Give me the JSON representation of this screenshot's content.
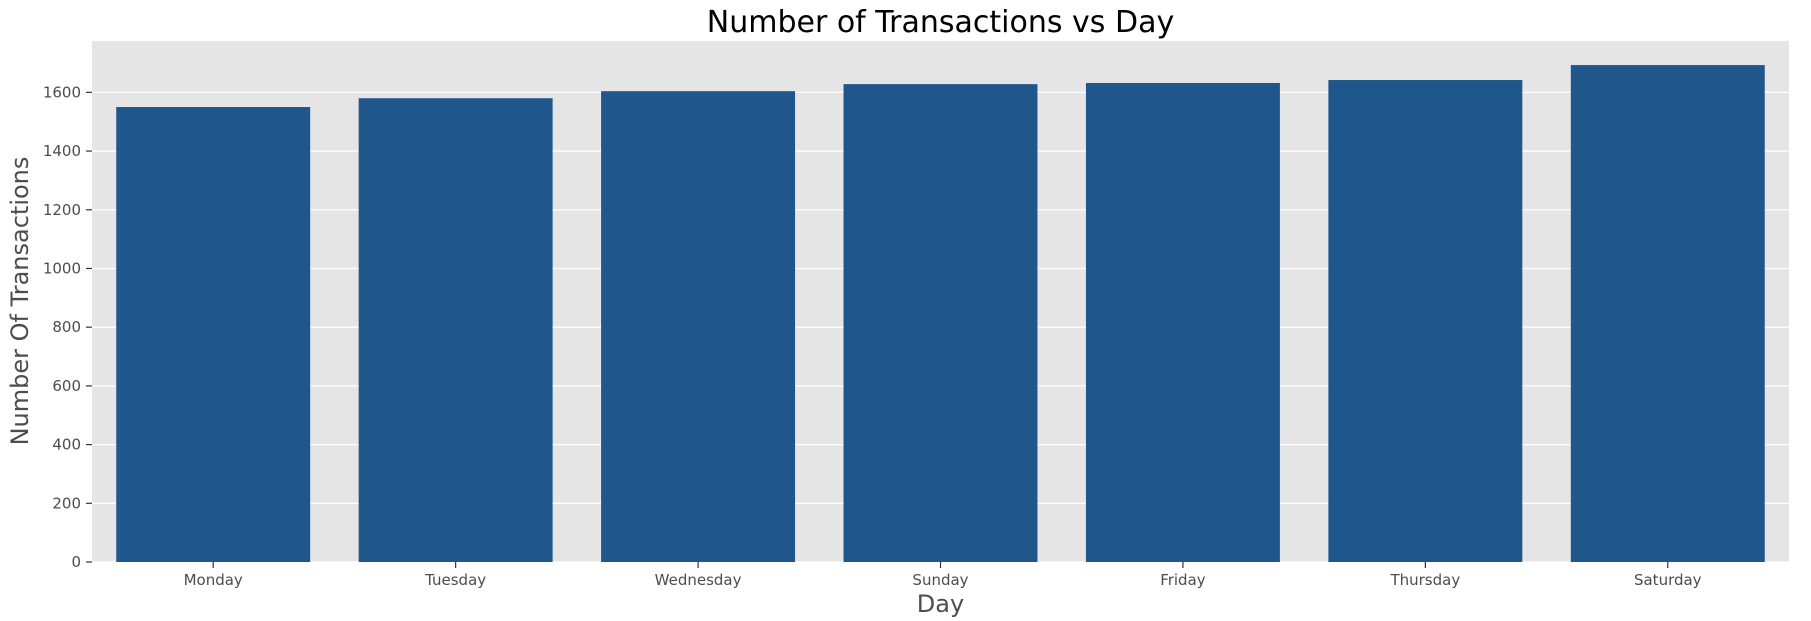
{
  "chart_data": {
    "type": "bar",
    "title": "Number of Transactions vs Day",
    "xlabel": "Day",
    "ylabel": "Number Of Transactions",
    "categories": [
      "Monday",
      "Tuesday",
      "Wednesday",
      "Sunday",
      "Friday",
      "Thursday",
      "Saturday"
    ],
    "values": [
      1550,
      1580,
      1604,
      1628,
      1632,
      1642,
      1693
    ],
    "ylim": [
      0,
      1775
    ],
    "yticks": [
      0,
      200,
      400,
      600,
      800,
      1000,
      1200,
      1400,
      1600
    ],
    "grid": true,
    "legend": "none",
    "colors": {
      "bar": "#1f568c",
      "plot_background": "#e5e5e5",
      "grid": "#ffffff",
      "tick_text": "#4d4d4d"
    }
  }
}
